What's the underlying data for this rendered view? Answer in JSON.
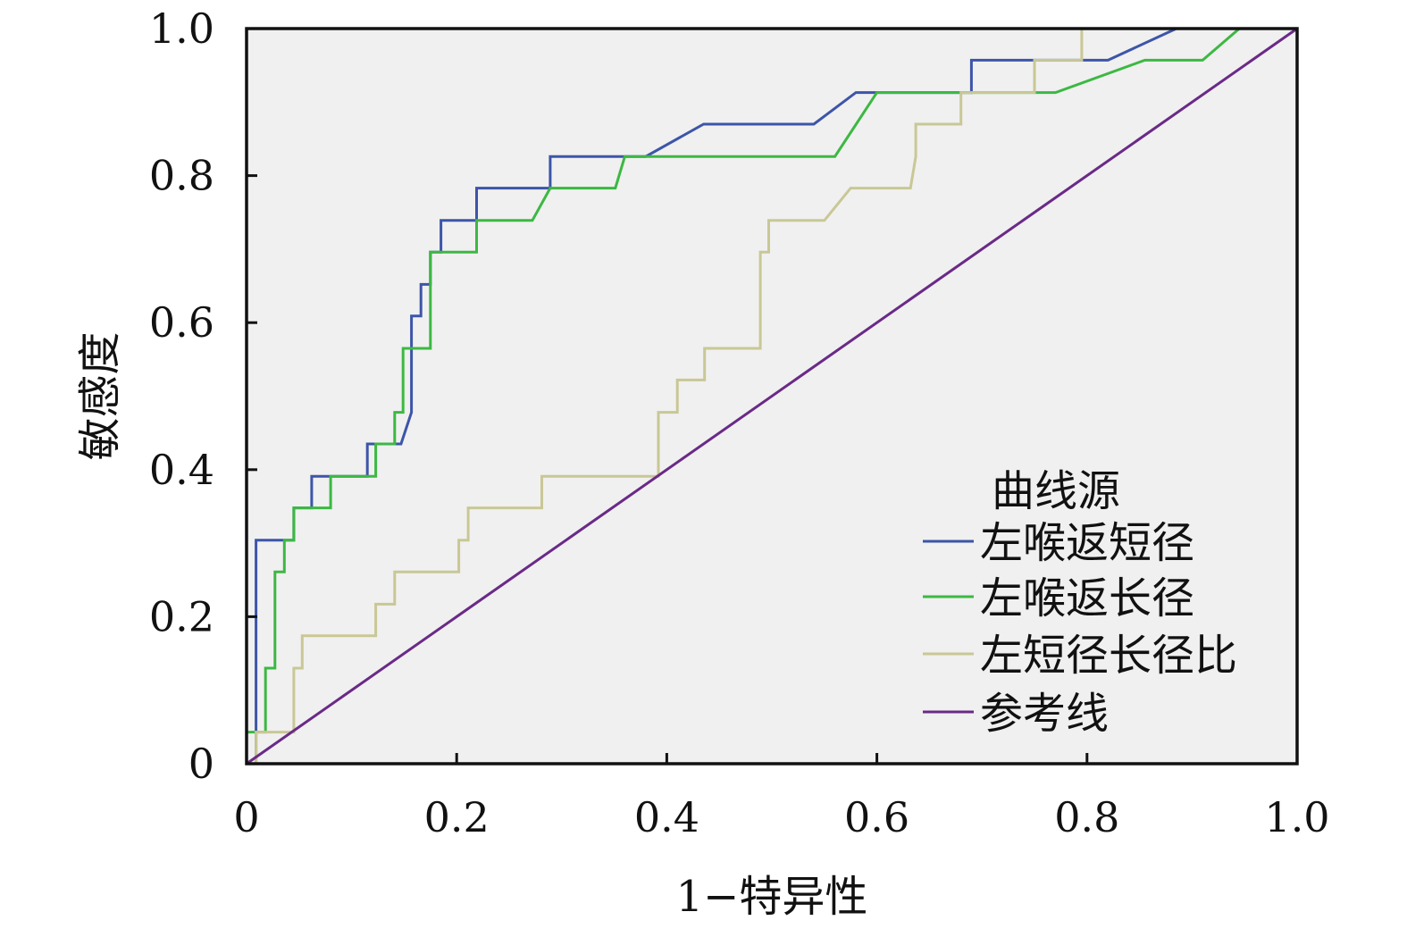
{
  "chart_data": {
    "type": "line",
    "xlabel": "1−特异性",
    "ylabel": "敏感度",
    "xlim": [
      0,
      1.0
    ],
    "ylim": [
      0,
      1.0
    ],
    "x_ticks": [
      0,
      0.2,
      0.4,
      0.6,
      0.8,
      1.0
    ],
    "y_ticks": [
      0,
      0.2,
      0.4,
      0.6,
      0.8,
      1.0
    ],
    "x_tick_labels": [
      "0",
      "0.2",
      "0.4",
      "0.6",
      "0.8",
      "1.0"
    ],
    "y_tick_labels": [
      "0",
      "0.2",
      "0.4",
      "0.6",
      "0.8",
      "1.0"
    ],
    "grid": false,
    "plot_background": "#f0f0f0",
    "legend": {
      "title": "曲线源",
      "position": "bottom-right"
    },
    "series": [
      {
        "name": "左喉返短径",
        "color": "#3d55a8",
        "x": [
          0,
          0.009,
          0.009,
          0.045,
          0.045,
          0.062,
          0.062,
          0.115,
          0.115,
          0.147,
          0.157,
          0.157,
          0.166,
          0.166,
          0.175,
          0.175,
          0.185,
          0.185,
          0.219,
          0.219,
          0.289,
          0.289,
          0.38,
          0.435,
          0.54,
          0.58,
          0.69,
          0.69,
          0.82,
          0.885,
          1.0
        ],
        "y": [
          0,
          0,
          0.304,
          0.304,
          0.348,
          0.348,
          0.391,
          0.391,
          0.435,
          0.435,
          0.478,
          0.609,
          0.609,
          0.652,
          0.652,
          0.696,
          0.696,
          0.739,
          0.739,
          0.783,
          0.783,
          0.826,
          0.826,
          0.87,
          0.87,
          0.913,
          0.913,
          0.957,
          0.957,
          1.0,
          1.0
        ]
      },
      {
        "name": "左喉返长径",
        "color": "#3cb843",
        "x": [
          0,
          0,
          0.018,
          0.018,
          0.027,
          0.027,
          0.036,
          0.036,
          0.045,
          0.045,
          0.08,
          0.08,
          0.123,
          0.123,
          0.141,
          0.141,
          0.149,
          0.149,
          0.175,
          0.175,
          0.219,
          0.219,
          0.272,
          0.289,
          0.351,
          0.36,
          0.56,
          0.6,
          0.77,
          0.855,
          0.91,
          0.945,
          1.0
        ],
        "y": [
          0,
          0.043,
          0.043,
          0.13,
          0.13,
          0.261,
          0.261,
          0.304,
          0.304,
          0.348,
          0.348,
          0.391,
          0.391,
          0.435,
          0.435,
          0.478,
          0.478,
          0.565,
          0.565,
          0.696,
          0.696,
          0.739,
          0.739,
          0.783,
          0.783,
          0.826,
          0.826,
          0.913,
          0.913,
          0.957,
          0.957,
          1.0,
          1.0
        ]
      },
      {
        "name": "左短径长径比",
        "color": "#c9c795",
        "x": [
          0,
          0.009,
          0.009,
          0.045,
          0.045,
          0.053,
          0.053,
          0.123,
          0.123,
          0.141,
          0.141,
          0.202,
          0.202,
          0.211,
          0.211,
          0.281,
          0.281,
          0.392,
          0.392,
          0.41,
          0.41,
          0.436,
          0.436,
          0.489,
          0.489,
          0.497,
          0.497,
          0.55,
          0.575,
          0.632,
          0.637,
          0.637,
          0.68,
          0.68,
          0.75,
          0.75,
          0.795,
          0.795,
          1.0
        ],
        "y": [
          0,
          0,
          0.043,
          0.043,
          0.13,
          0.13,
          0.174,
          0.174,
          0.217,
          0.217,
          0.261,
          0.261,
          0.304,
          0.304,
          0.348,
          0.348,
          0.391,
          0.391,
          0.478,
          0.478,
          0.522,
          0.522,
          0.565,
          0.565,
          0.696,
          0.696,
          0.739,
          0.739,
          0.783,
          0.783,
          0.826,
          0.87,
          0.87,
          0.913,
          0.913,
          0.957,
          0.957,
          1.0,
          1.0
        ]
      },
      {
        "name": "参考线",
        "color": "#6a2a87",
        "x": [
          0,
          1.0
        ],
        "y": [
          0,
          1.0
        ]
      }
    ]
  }
}
